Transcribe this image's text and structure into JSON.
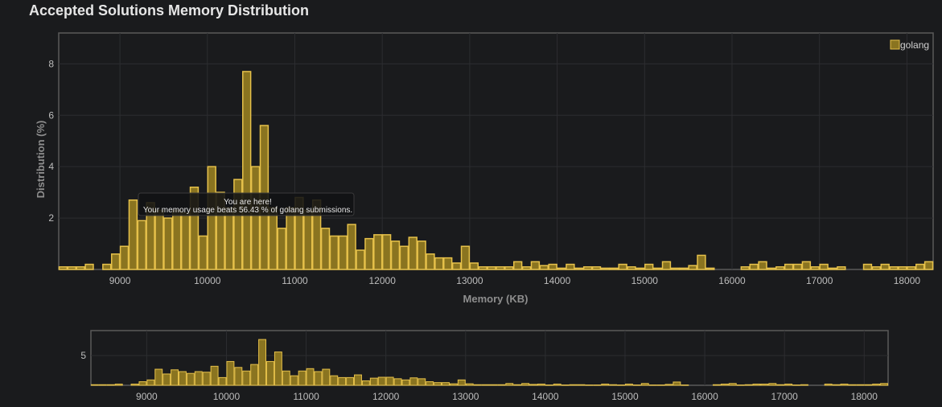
{
  "page": {
    "title": "Accepted Solutions Memory Distribution"
  },
  "colors": {
    "bar_fill": "#8a7420",
    "bar_stroke": "#e6c14a",
    "grid": "#2c2d30",
    "frame": "#5a5a5a"
  },
  "tooltip": {
    "line1": "You are here!",
    "line2": "Your memory usage beats 56.43 % of golang submissions."
  },
  "chart_data": [
    {
      "type": "bar",
      "title": "Accepted Solutions Memory Distribution",
      "xlabel": "Memory (KB)",
      "ylabel": "Distribution (%)",
      "xlim": [
        8300,
        18300
      ],
      "ylim": [
        0,
        9.2
      ],
      "xticks": [
        9000,
        10000,
        11000,
        12000,
        13000,
        14000,
        15000,
        16000,
        17000,
        18000
      ],
      "yticks": [
        2,
        4,
        6,
        8
      ],
      "grid": true,
      "legend": {
        "position": "top-right",
        "entries": [
          "golang"
        ]
      },
      "series": [
        {
          "name": "golang",
          "bin_width": 100,
          "x": [
            8300,
            8400,
            8500,
            8600,
            8700,
            8800,
            8900,
            9000,
            9100,
            9200,
            9300,
            9400,
            9500,
            9600,
            9700,
            9800,
            9900,
            10000,
            10100,
            10200,
            10300,
            10400,
            10500,
            10600,
            10700,
            10800,
            10900,
            11000,
            11100,
            11200,
            11300,
            11400,
            11500,
            11600,
            11700,
            11800,
            11900,
            12000,
            12100,
            12200,
            12300,
            12400,
            12500,
            12600,
            12700,
            12800,
            12900,
            13000,
            13100,
            13200,
            13300,
            13400,
            13500,
            13600,
            13700,
            13800,
            13900,
            14000,
            14100,
            14200,
            14300,
            14400,
            14500,
            14600,
            14700,
            14800,
            14900,
            15000,
            15100,
            15200,
            15300,
            15400,
            15500,
            15600,
            15700,
            15800,
            15900,
            16000,
            16100,
            16200,
            16300,
            16400,
            16500,
            16600,
            16700,
            16800,
            16900,
            17000,
            17100,
            17200,
            17300,
            17400,
            17500,
            17600,
            17700,
            17800,
            17900,
            18000,
            18100,
            18200
          ],
          "values": [
            0.1,
            0.1,
            0.1,
            0.2,
            0,
            0.2,
            0.6,
            0.9,
            2.7,
            1.9,
            2.6,
            2.3,
            2,
            2.3,
            2.2,
            3.2,
            1.3,
            4,
            3,
            2.4,
            3.5,
            7.7,
            4,
            5.6,
            2.4,
            1.6,
            2.4,
            2.8,
            2.3,
            2.7,
            1.6,
            1.3,
            1.3,
            1.75,
            0.75,
            1.2,
            1.35,
            1.35,
            1.1,
            0.9,
            1.25,
            1.1,
            0.6,
            0.45,
            0.45,
            0.25,
            0.9,
            0.25,
            0.1,
            0.1,
            0.1,
            0.1,
            0.3,
            0.1,
            0.3,
            0.15,
            0.2,
            0.05,
            0.2,
            0.05,
            0.1,
            0.1,
            0.05,
            0.05,
            0.2,
            0.1,
            0.05,
            0.2,
            0.05,
            0.3,
            0.05,
            0.05,
            0.15,
            0.55,
            0.05,
            0,
            0,
            0,
            0.1,
            0.2,
            0.3,
            0.05,
            0.1,
            0.2,
            0.2,
            0.3,
            0.1,
            0.2,
            0.05,
            0.1,
            0,
            0,
            0.2,
            0.1,
            0.2,
            0.1,
            0.1,
            0.1,
            0.2,
            0.3
          ]
        }
      ]
    },
    {
      "type": "bar",
      "role": "navigator",
      "xlim": [
        8300,
        18300
      ],
      "ylim": [
        0,
        9.2
      ],
      "xticks": [
        9000,
        10000,
        11000,
        12000,
        13000,
        14000,
        15000,
        16000,
        17000,
        18000
      ],
      "yticks": [
        5
      ],
      "series": [
        {
          "name": "golang",
          "ref": "same as main series"
        }
      ]
    }
  ]
}
